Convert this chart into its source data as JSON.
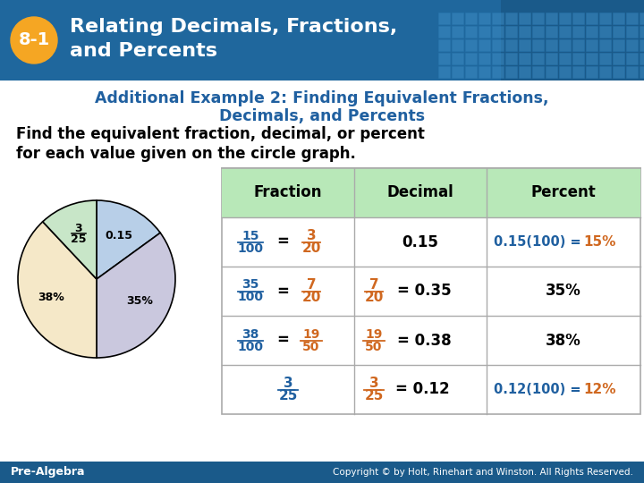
{
  "title_number": "8-1",
  "title_line1": "Relating Decimals, Fractions,",
  "title_line2": "and Percents",
  "table_header": [
    "Fraction",
    "Decimal",
    "Percent"
  ],
  "pie_slices": [
    15,
    35,
    38,
    12
  ],
  "pie_colors": [
    "#b8cfe8",
    "#cac8de",
    "#f5e8c8",
    "#c8e6c8"
  ],
  "header_dark": "#1a5a8a",
  "header_mid": "#2575b0",
  "orange_circle": "#f5a623",
  "blue_text": "#2060a0",
  "orange_text": "#d06820",
  "table_header_bg": "#b8e8b8",
  "footer_bg": "#1a5a8a",
  "bg_color": "#ffffff",
  "grid_color": "#aaaaaa"
}
